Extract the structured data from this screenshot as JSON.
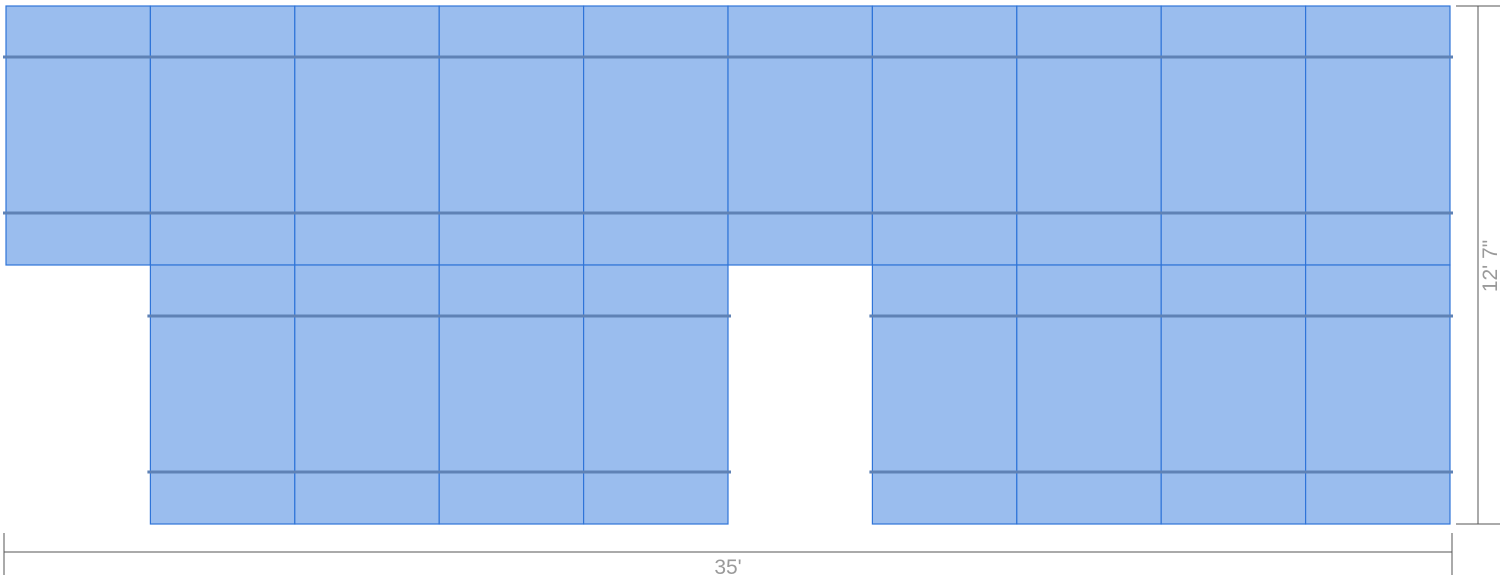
{
  "layout": {
    "panel_color": "#9abdee",
    "panel_border_color": "#2f74d8",
    "rail_color": "#5f82b5",
    "rows": [
      {
        "name": "top-row",
        "columns": 10,
        "filled": [
          1,
          1,
          1,
          1,
          1,
          1,
          1,
          1,
          1,
          1
        ]
      },
      {
        "name": "bottom-row",
        "columns": 10,
        "filled": [
          0,
          1,
          1,
          1,
          1,
          0,
          1,
          1,
          1,
          1
        ]
      }
    ]
  },
  "dimensions": {
    "width_label": "35'",
    "height_label": "12' 7\""
  }
}
